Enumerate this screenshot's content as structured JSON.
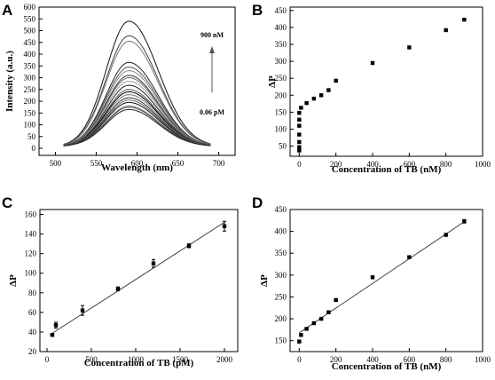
{
  "chart_data": [
    {
      "panel": "A",
      "type": "line",
      "xlabel": "Wavelength (nm)",
      "ylabel": "Intensity (a.u.)",
      "xlim": [
        480,
        720
      ],
      "ylim": [
        -30,
        600
      ],
      "xticks": [
        500,
        550,
        600,
        650,
        700
      ],
      "yticks": [
        0,
        50,
        100,
        150,
        200,
        250,
        300,
        350,
        400,
        450,
        500,
        550,
        600
      ],
      "peak_wavelength": 590,
      "wavelength_range": [
        510,
        690
      ],
      "peak_intensities": [
        540,
        478,
        455,
        365,
        345,
        330,
        310,
        300,
        285,
        268,
        250,
        240,
        228,
        215,
        205,
        195,
        180,
        175,
        165
      ],
      "annotations": {
        "top": "900 nM",
        "bottom": "0.06 pM"
      },
      "grid": false
    },
    {
      "panel": "B",
      "type": "scatter",
      "xlabel": "Concentration of TB (nM)",
      "ylabel": "ΔP",
      "xlim": [
        -50,
        1000
      ],
      "ylim": [
        20,
        460
      ],
      "xticks": [
        0,
        200,
        400,
        600,
        800,
        1000
      ],
      "yticks": [
        50,
        100,
        150,
        200,
        250,
        300,
        350,
        400,
        450
      ],
      "x": [
        6e-05,
        0.0001,
        0.0004,
        0.0008,
        0.0012,
        0.0016,
        0.002,
        10,
        40,
        80,
        120,
        160,
        200,
        400,
        600,
        800,
        900
      ],
      "y": [
        37,
        47,
        62,
        84,
        110,
        128,
        148,
        163,
        177,
        190,
        200,
        215,
        243,
        295,
        341,
        392,
        423
      ],
      "grid": false
    },
    {
      "panel": "C",
      "type": "scatter",
      "xlabel": "Concentration of TB (pM)",
      "ylabel": "ΔP",
      "xlim": [
        -80,
        2150
      ],
      "ylim": [
        20,
        165
      ],
      "xticks": [
        0,
        500,
        1000,
        1500,
        2000
      ],
      "yticks": [
        20,
        40,
        60,
        80,
        100,
        120,
        140,
        160
      ],
      "x": [
        60,
        100,
        400,
        800,
        1200,
        1600,
        2000
      ],
      "y": [
        37,
        47,
        62,
        84,
        110,
        128,
        148
      ],
      "error": [
        1,
        3,
        5,
        2,
        4,
        2,
        5
      ],
      "fit": {
        "x": [
          30,
          2000
        ],
        "y": [
          37,
          152
        ]
      },
      "grid": false
    },
    {
      "panel": "D",
      "type": "scatter",
      "xlabel": "Concentration of TB (nM)",
      "ylabel": "ΔP",
      "xlim": [
        -50,
        1000
      ],
      "ylim": [
        125,
        450
      ],
      "xticks": [
        0,
        200,
        400,
        600,
        800,
        1000
      ],
      "yticks": [
        150,
        200,
        250,
        300,
        350,
        400,
        450
      ],
      "x": [
        0,
        10,
        40,
        80,
        120,
        160,
        200,
        400,
        600,
        800,
        900
      ],
      "y": [
        148,
        163,
        177,
        190,
        200,
        215,
        243,
        295,
        341,
        392,
        423
      ],
      "error": [
        3,
        2,
        2,
        2,
        2,
        2,
        2,
        3,
        2,
        3,
        4
      ],
      "fit": {
        "x": [
          0,
          910
        ],
        "y": [
          168,
          425
        ]
      },
      "grid": false
    }
  ]
}
